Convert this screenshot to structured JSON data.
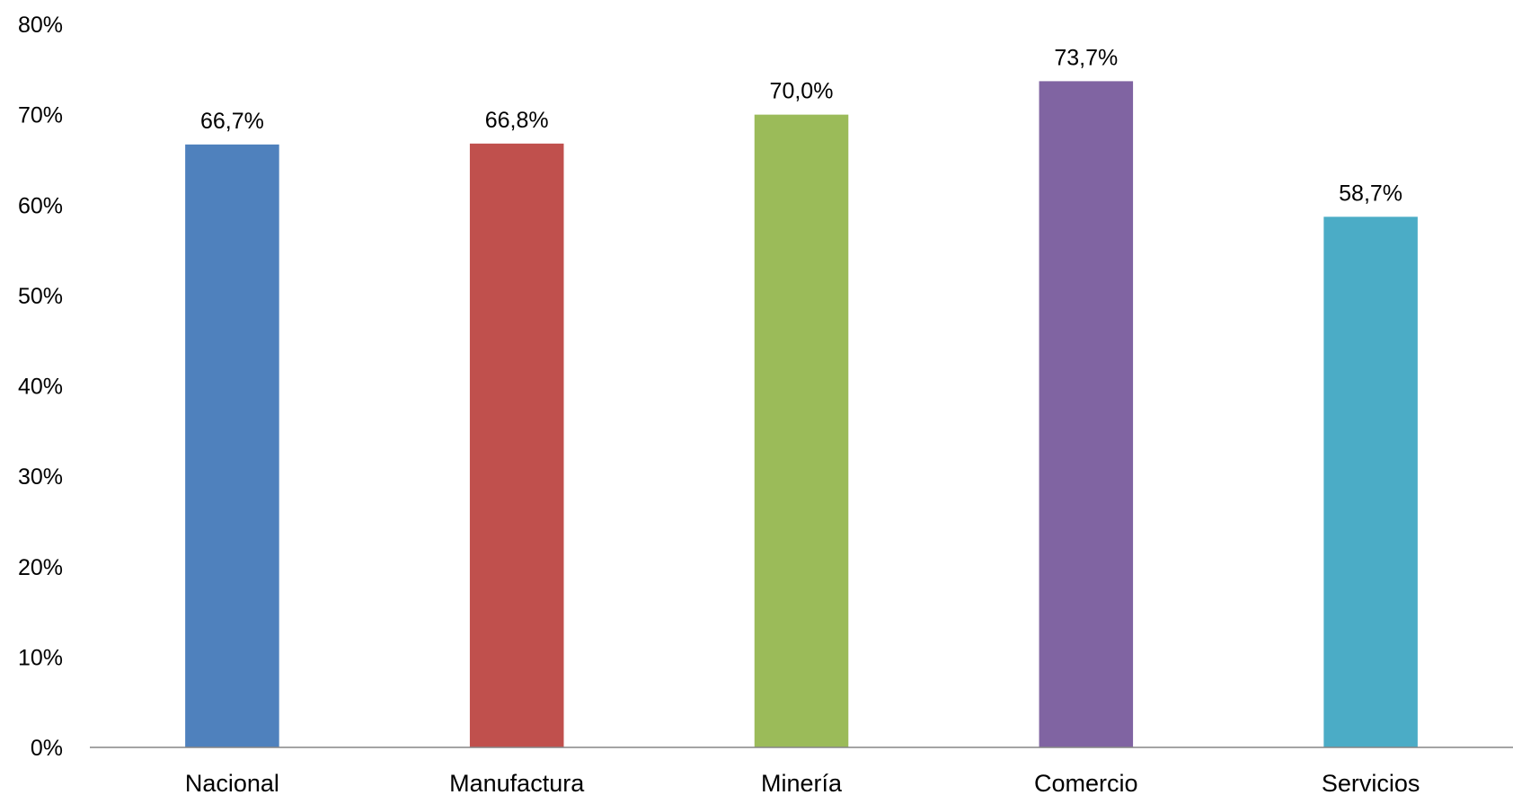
{
  "chart_data": {
    "type": "bar",
    "title": "",
    "xlabel": "",
    "ylabel": "",
    "categories": [
      "Nacional",
      "Manufactura",
      "Minería",
      "Comercio",
      "Servicios"
    ],
    "values": [
      66.7,
      66.8,
      70.0,
      73.7,
      58.7
    ],
    "data_labels": [
      "66,7%",
      "66,8%",
      "70,0%",
      "73,7%",
      "58,7%"
    ],
    "colors": [
      "#4F81BD",
      "#C0504D",
      "#9BBB59",
      "#8064A2",
      "#4BACC6"
    ],
    "ylim": [
      0,
      80
    ],
    "yticks": [
      0,
      10,
      20,
      30,
      40,
      50,
      60,
      70,
      80
    ],
    "ytick_labels": [
      "0%",
      "10%",
      "20%",
      "30%",
      "40%",
      "50%",
      "60%",
      "70%",
      "80%"
    ],
    "grid": false,
    "legend": "none"
  }
}
